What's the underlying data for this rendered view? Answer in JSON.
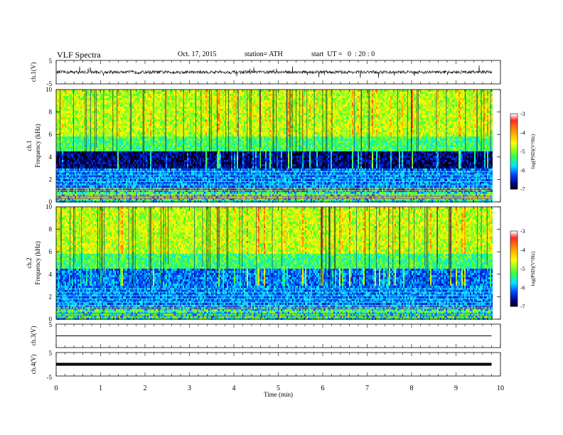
{
  "header": {
    "title": "VLF Spectra",
    "date": "Oct. 17, 2015",
    "station": "station= ATH",
    "start": "start  UT =   0  : 20 : 0"
  },
  "colorbar": {
    "label": "log(PSD)(V²/Hz)",
    "ticks": [
      "-3",
      "-4",
      "-5",
      "-6",
      "-7"
    ],
    "colors": [
      "#ffffff",
      "#ff2020",
      "#ff8c00",
      "#ffff00",
      "#40ff40",
      "#00ffff",
      "#0040ff",
      "#00008b",
      "#000000"
    ]
  },
  "chart_data": [
    {
      "type": "line",
      "panel": "ch1-waveform",
      "ylabel": "ch.1(V)",
      "yticks": [
        "5",
        "-5"
      ],
      "ylim": [
        -5,
        5
      ],
      "x": [
        0,
        9.8
      ],
      "values_mean": 0,
      "values_range": [
        -1.5,
        1.5
      ]
    },
    {
      "type": "heatmap",
      "panel": "ch1-spectrogram",
      "ylabel": "ch.1  Frequency (kHz)",
      "yticks": [
        "10",
        "8",
        "6",
        "4",
        "2",
        "0"
      ],
      "ylim": [
        0,
        10
      ],
      "xlim": [
        0,
        9.8
      ],
      "z_label": "log(PSD)",
      "z_range": [
        -7,
        -3
      ]
    },
    {
      "type": "heatmap",
      "panel": "ch2-spectrogram",
      "ylabel": "ch.2  Frequency (kHz)",
      "yticks": [
        "10",
        "8",
        "6",
        "4",
        "2",
        "0"
      ],
      "ylim": [
        0,
        10
      ],
      "xlim": [
        0,
        9.8
      ],
      "z_label": "log(PSD)",
      "z_range": [
        -7,
        -3
      ]
    },
    {
      "type": "line",
      "panel": "ch3-waveform",
      "ylabel": "ch.3(V)",
      "yticks": [
        "5"
      ],
      "ylim": [
        -5,
        5
      ],
      "x": [
        0,
        9.8
      ],
      "values": [
        0,
        0
      ]
    },
    {
      "type": "line",
      "panel": "ch4-waveform",
      "ylabel": "ch.4(V)",
      "yticks": [
        "5",
        "-5"
      ],
      "ylim": [
        -5,
        5
      ],
      "x": [
        0,
        9.8
      ],
      "values": [
        0,
        0
      ]
    }
  ],
  "xaxis": {
    "label": "Time  (min)",
    "ticks": [
      "0",
      "1",
      "2",
      "3",
      "4",
      "5",
      "6",
      "7",
      "8",
      "9",
      "10"
    ]
  }
}
